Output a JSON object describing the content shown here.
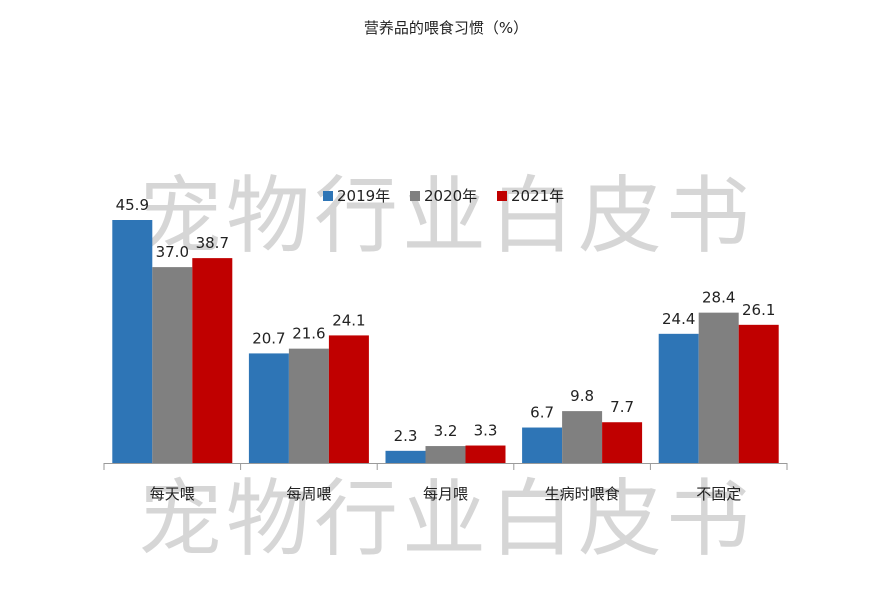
{
  "chart_data": {
    "type": "bar",
    "title": "营养品的喂食习惯（%）",
    "categories": [
      "每天喂",
      "每周喂",
      "每月喂",
      "生病时喂食",
      "不固定"
    ],
    "series": [
      {
        "name": "2019年",
        "color": "#2e75b6",
        "values": [
          45.9,
          20.7,
          2.3,
          6.7,
          24.4
        ]
      },
      {
        "name": "2020年",
        "color": "#808080",
        "values": [
          37.0,
          21.6,
          3.2,
          9.8,
          28.4
        ]
      },
      {
        "name": "2021年",
        "color": "#c00000",
        "values": [
          38.7,
          24.1,
          3.3,
          7.7,
          26.1
        ]
      }
    ],
    "xlabel": "",
    "ylabel": "",
    "ylim": [
      0,
      50
    ],
    "grid": false,
    "legend_position": "top-center",
    "value_labels": [
      "45.9",
      "37.0",
      "38.7",
      "20.7",
      "21.6",
      "24.1",
      "2.3",
      "3.2",
      "3.3",
      "6.7",
      "9.8",
      "7.7",
      "24.4",
      "28.4",
      "26.1"
    ]
  },
  "watermark": "宠物行业白皮书"
}
